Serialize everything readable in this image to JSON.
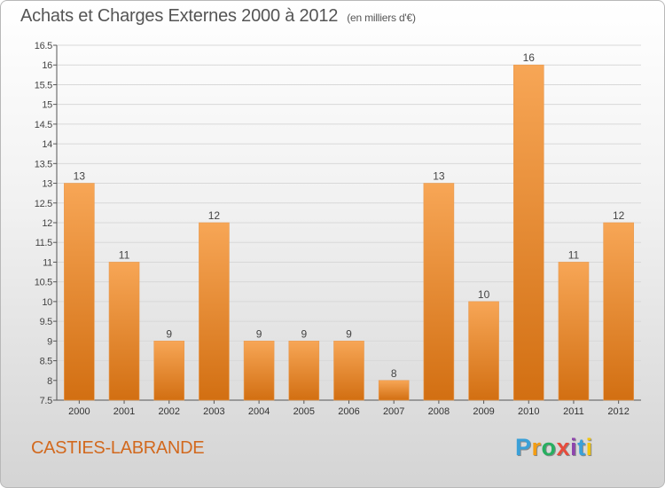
{
  "header": {
    "title": "Achats et Charges Externes 2000 à 2012",
    "unit": "(en milliers d'€)"
  },
  "footer": {
    "commune": "CASTIES-LABRANDE"
  },
  "logo": {
    "letters": [
      {
        "ch": "P",
        "color": "#3aa0d8"
      },
      {
        "ch": "r",
        "color": "#f39c12"
      },
      {
        "ch": "o",
        "color": "#27ae60"
      },
      {
        "ch": "x",
        "color": "#e74c3c"
      },
      {
        "ch": "i",
        "color": "#8e44ad"
      },
      {
        "ch": "t",
        "color": "#3aa0d8"
      },
      {
        "ch": "i",
        "color": "#f1c40f"
      }
    ]
  },
  "chart_data": {
    "type": "bar",
    "title": "Achats et Charges Externes 2000 à 2012",
    "subtitle": "(en milliers d'€)",
    "xlabel": "",
    "ylabel": "",
    "categories": [
      "2000",
      "2001",
      "2002",
      "2003",
      "2004",
      "2005",
      "2006",
      "2007",
      "2008",
      "2009",
      "2010",
      "2011",
      "2012"
    ],
    "values": [
      13,
      11,
      9,
      12,
      9,
      9,
      9,
      8,
      13,
      10,
      16,
      11,
      12
    ],
    "labels": [
      "13",
      "11",
      "9",
      "12",
      "9",
      "9",
      "9",
      "8",
      "13",
      "10",
      "16",
      "11",
      "12"
    ],
    "ylim": [
      7.5,
      16.5
    ],
    "yticks": [
      7.5,
      8,
      8.5,
      9,
      9.5,
      10,
      10.5,
      11,
      11.5,
      12,
      12.5,
      13,
      13.5,
      14,
      14.5,
      15,
      15.5,
      16,
      16.5
    ],
    "ytick_labels": [
      "7.5",
      "8",
      "8.5",
      "9",
      "9.5",
      "10",
      "10.5",
      "11",
      "11.5",
      "12",
      "12.5",
      "13",
      "13.5",
      "14",
      "14.5",
      "15",
      "15.5",
      "16",
      "16.5"
    ],
    "grid": "horizontal",
    "bar_color_top": "#f7a656",
    "bar_color_bottom": "#d26f12"
  }
}
